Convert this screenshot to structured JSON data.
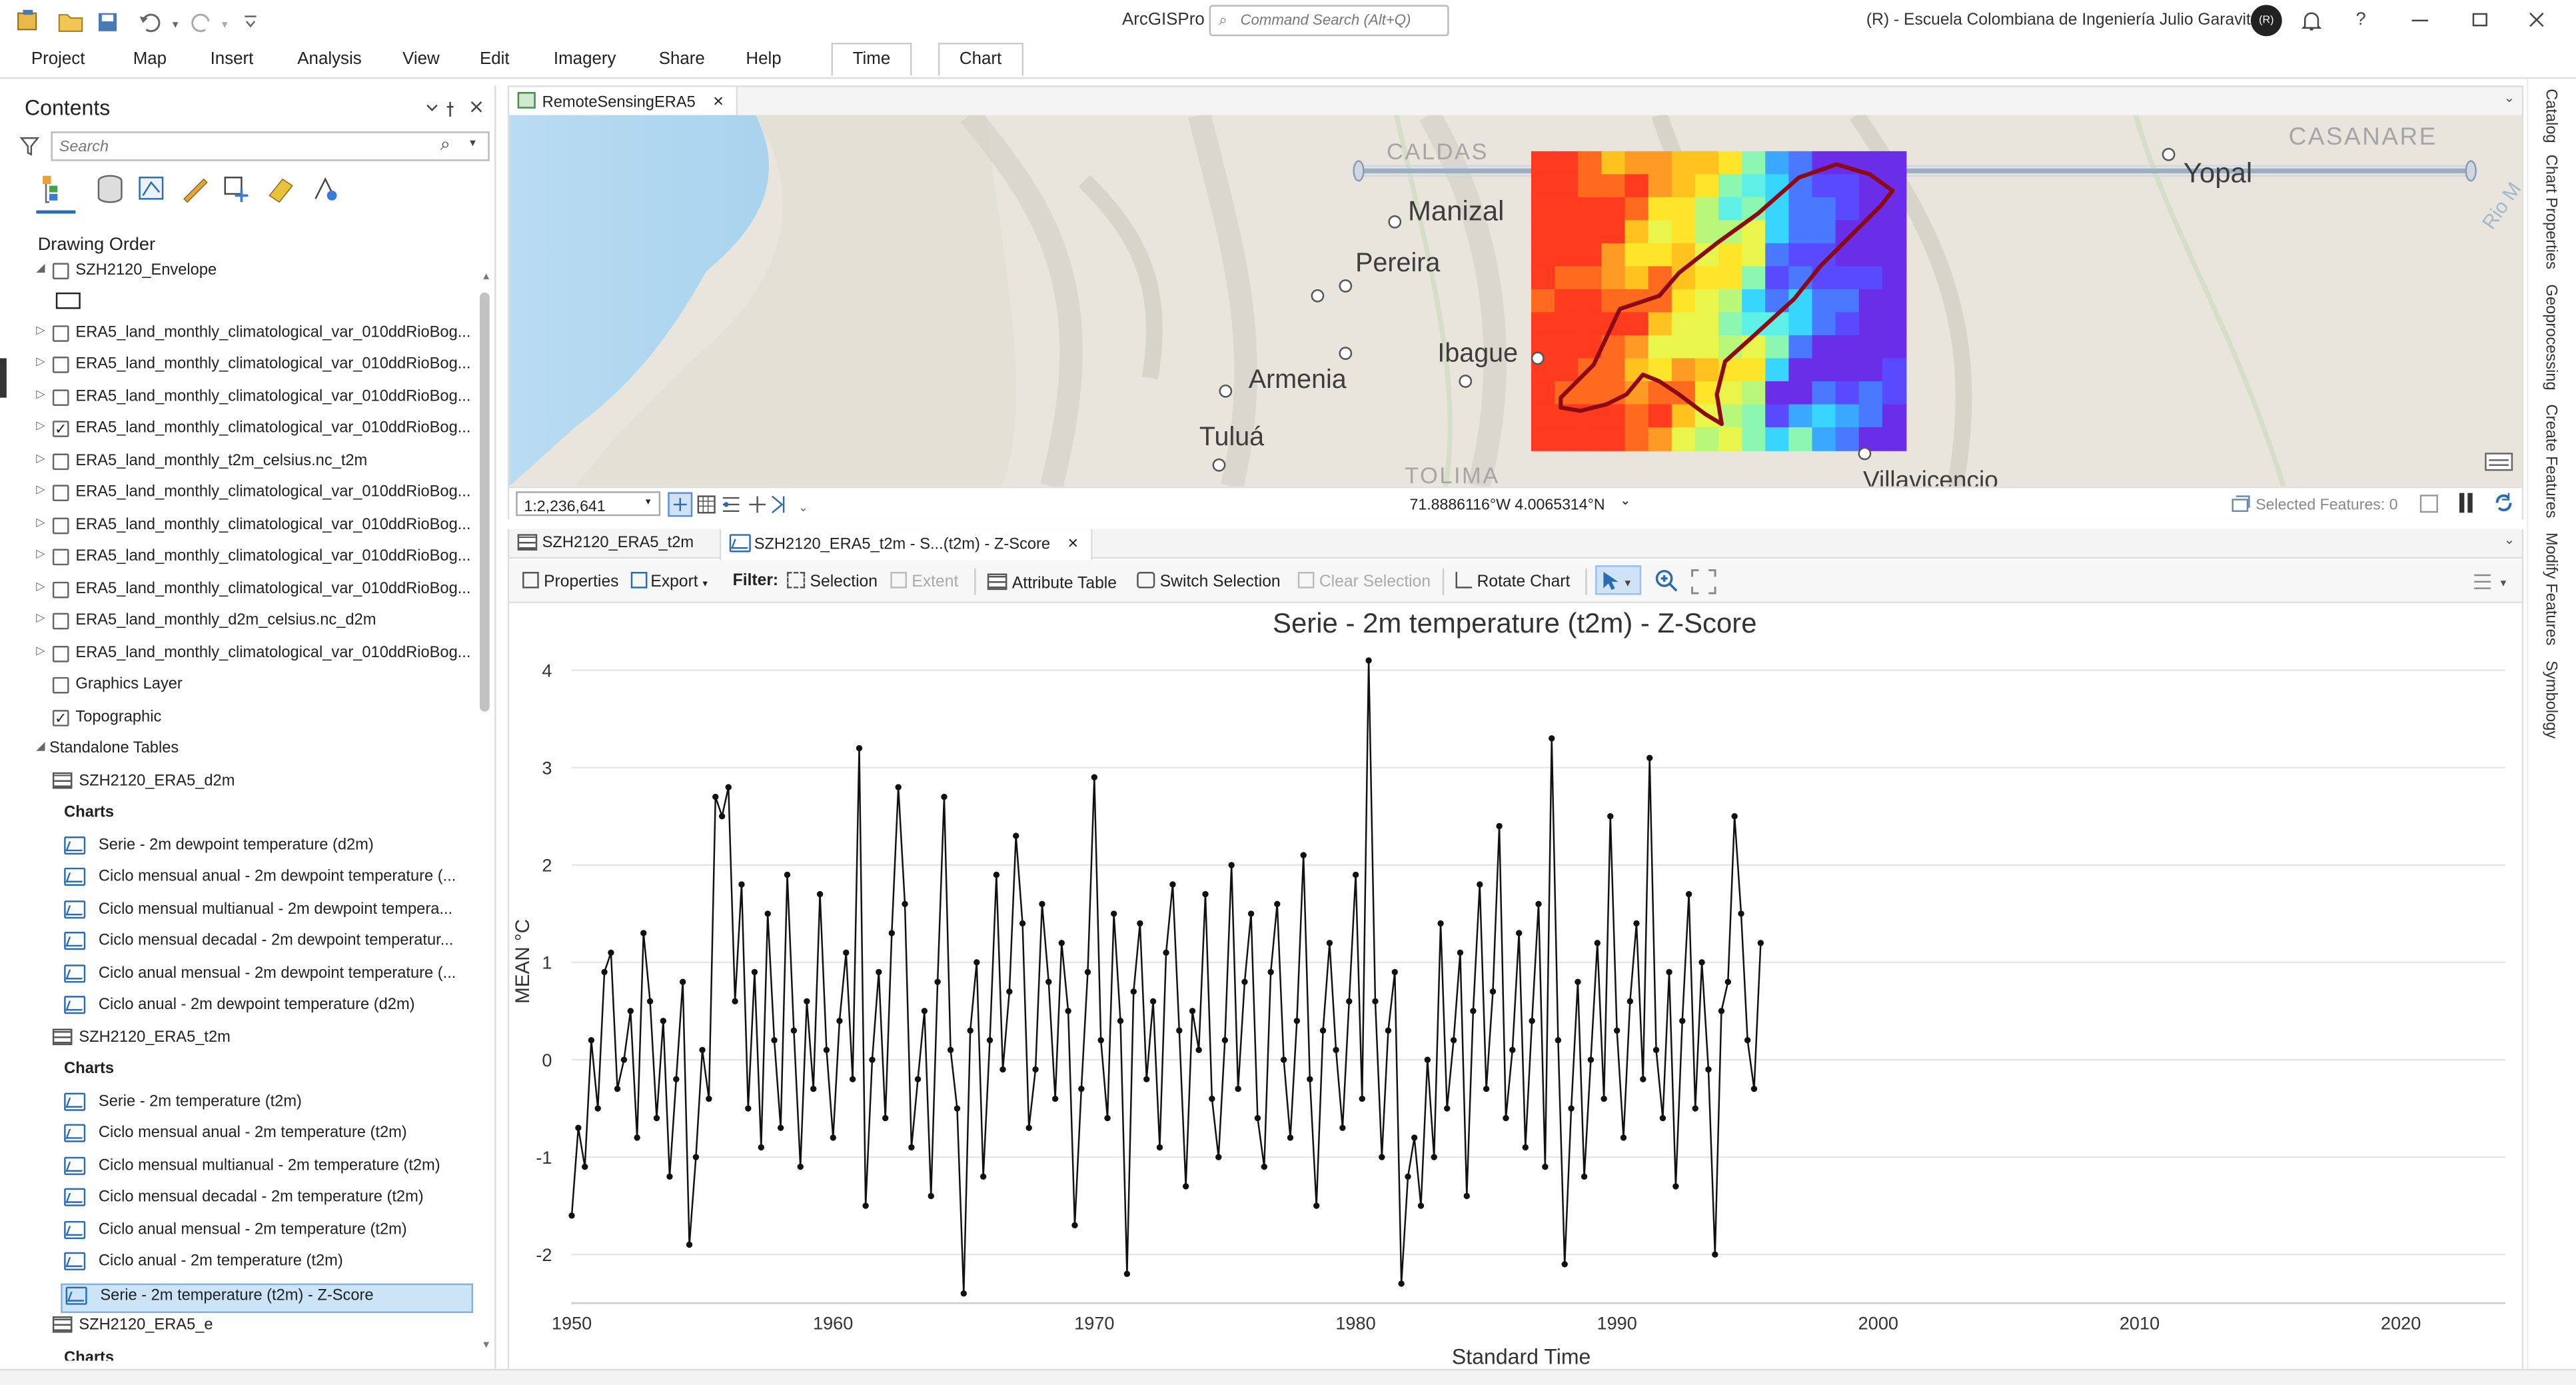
{
  "app": {
    "name": "ArcGISPro",
    "command_search_placeholder": "Command Search (Alt+Q)",
    "org": "(R) - Escuela Colombiana de Ingeniería Julio Garavito",
    "avatar_initials": "(R)",
    "help": "?"
  },
  "ribbon": {
    "tabs": [
      "Project",
      "Map",
      "Insert",
      "Analysis",
      "View",
      "Edit",
      "Imagery",
      "Share",
      "Help"
    ],
    "context_tabs": [
      "Time",
      "Chart"
    ]
  },
  "contents": {
    "title": "Contents",
    "search_placeholder": "Search",
    "section": "Drawing Order",
    "layers": [
      {
        "label": "SZH2120_Envelope",
        "checked": false,
        "expanded": true
      },
      {
        "label": "ERA5_land_monthly_climatological_var_010ddRioBog...",
        "checked": false
      },
      {
        "label": "ERA5_land_monthly_climatological_var_010ddRioBog...",
        "checked": false
      },
      {
        "label": "ERA5_land_monthly_climatological_var_010ddRioBog...",
        "checked": false
      },
      {
        "label": "ERA5_land_monthly_climatological_var_010ddRioBog...",
        "checked": true
      },
      {
        "label": "ERA5_land_monthly_t2m_celsius.nc_t2m",
        "checked": false
      },
      {
        "label": "ERA5_land_monthly_climatological_var_010ddRioBog...",
        "checked": false
      },
      {
        "label": "ERA5_land_monthly_climatological_var_010ddRioBog...",
        "checked": false
      },
      {
        "label": "ERA5_land_monthly_climatological_var_010ddRioBog...",
        "checked": false
      },
      {
        "label": "ERA5_land_monthly_climatological_var_010ddRioBog...",
        "checked": false
      },
      {
        "label": "ERA5_land_monthly_d2m_celsius.nc_d2m",
        "checked": false
      },
      {
        "label": "ERA5_land_monthly_climatological_var_010ddRioBog...",
        "checked": false
      },
      {
        "label": "Graphics Layer",
        "checked": false
      },
      {
        "label": "Topographic",
        "checked": true
      }
    ],
    "standalone_tables_label": "Standalone Tables",
    "tables": [
      {
        "name": "SZH2120_ERA5_d2m",
        "charts_label": "Charts",
        "charts": [
          "Serie - 2m dewpoint temperature (d2m)",
          "Ciclo mensual anual - 2m dewpoint temperature (...",
          "Ciclo mensual multianual - 2m dewpoint tempera...",
          "Ciclo mensual decadal - 2m dewpoint temperatur...",
          "Ciclo anual mensual - 2m dewpoint temperature (...",
          "Ciclo anual - 2m dewpoint temperature (d2m)"
        ]
      },
      {
        "name": "SZH2120_ERA5_t2m",
        "charts_label": "Charts",
        "charts": [
          "Serie - 2m temperature (t2m)",
          "Ciclo mensual anual - 2m temperature (t2m)",
          "Ciclo mensual multianual - 2m temperature (t2m)",
          "Ciclo mensual decadal - 2m temperature (t2m)",
          "Ciclo anual mensual - 2m temperature (t2m)",
          "Ciclo anual - 2m temperature (t2m)",
          "Serie - 2m temperature (t2m) - Z-Score"
        ]
      },
      {
        "name": "SZH2120_ERA5_e",
        "charts_label": "Charts",
        "charts": []
      }
    ]
  },
  "map": {
    "tab": "RemoteSensingERA5",
    "labels": [
      "CALDAS",
      "CASANARE",
      "Manizal",
      "Pereira",
      "Ibague",
      "Armenia",
      "Tuluá",
      "TOLIMA",
      "Villavicencio",
      "Yopal",
      "Rio M"
    ],
    "scale": "1:2,236,641",
    "coordinates": "71.8886116°W 4.0065314°N",
    "selected_features": "Selected Features: 0"
  },
  "chart_view": {
    "tabs": [
      "SZH2120_ERA5_t2m",
      "SZH2120_ERA5_t2m - S...(t2m) - Z-Score"
    ],
    "toolbar": {
      "properties": "Properties",
      "export": "Export",
      "filter": "Filter:",
      "selection": "Selection",
      "extent": "Extent",
      "attribute_table": "Attribute Table",
      "switch_selection": "Switch Selection",
      "clear_selection": "Clear Selection",
      "rotate_chart": "Rotate Chart"
    }
  },
  "right_panes": [
    "Catalog",
    "Chart Properties",
    "Geoprocessing",
    "Create Features",
    "Modify Features",
    "Symbology"
  ],
  "colors": {
    "accent": "#2b6cb0",
    "selected_row": "#cce4f7",
    "boundary": "#8b0a14"
  },
  "chart_data": {
    "type": "line",
    "title": "Serie - 2m temperature (t2m) - Z-Score",
    "xlabel": "Standard Time",
    "ylabel": "MEAN °C",
    "x_ticks": [
      1950,
      1960,
      1970,
      1980,
      1990,
      2000,
      2010,
      2020
    ],
    "y_ticks": [
      -2,
      -1,
      0,
      1,
      2,
      3,
      4
    ],
    "xlim": [
      1950,
      2024
    ],
    "ylim": [
      -2.5,
      4.2
    ],
    "markers": true,
    "grid": "horizontal",
    "series": [
      {
        "x_start": 1950,
        "step": 0.25,
        "values": [
          -1.6,
          -0.7,
          -1.1,
          0.2,
          -0.5,
          0.9,
          1.1,
          -0.3,
          0.0,
          0.5,
          -0.8,
          1.3,
          0.6,
          -0.6,
          0.4,
          -1.2,
          -0.2,
          0.8,
          -1.9,
          -1.0,
          0.1,
          -0.4,
          2.7,
          2.5,
          2.8,
          0.6,
          1.8,
          -0.5,
          0.9,
          -0.9,
          1.5,
          0.2,
          -0.7,
          1.9,
          0.3,
          -1.1,
          0.6,
          -0.3,
          1.7,
          0.1,
          -0.8,
          0.4,
          1.1,
          -0.2,
          3.2,
          -1.5,
          0.0,
          0.9,
          -0.6,
          1.3,
          2.8,
          1.6,
          -0.9,
          -0.2,
          0.5,
          -1.4,
          0.8,
          2.7,
          0.1,
          -0.5,
          -2.4,
          0.3,
          1.0,
          -1.2,
          0.2,
          1.9,
          -0.1,
          0.7,
          2.3,
          1.4,
          -0.7,
          -0.1,
          1.6,
          0.8,
          -0.4,
          1.2,
          0.5,
          -1.7,
          -0.3,
          0.9,
          2.9,
          0.2,
          -0.6,
          1.5,
          0.4,
          -2.2,
          0.7,
          1.4,
          -0.2,
          0.6,
          -0.9,
          1.1,
          1.8,
          0.3,
          -1.3,
          0.5,
          0.1,
          1.7,
          -0.4,
          -1.0,
          0.2,
          2.0,
          -0.3,
          0.8,
          1.5,
          -0.6,
          -1.1,
          0.9,
          1.6,
          0.0,
          -0.8,
          0.4,
          2.1,
          -0.2,
          -1.5,
          0.3,
          1.2,
          0.1,
          -0.7,
          0.6,
          1.9,
          -0.4,
          4.1,
          0.6,
          -1.0,
          0.3,
          0.9,
          -2.3,
          -1.2,
          -0.8,
          -1.5,
          0.0,
          -1.0,
          1.4,
          -0.5,
          0.2,
          1.1,
          -1.4,
          0.5,
          1.8,
          -0.3,
          0.7,
          2.4,
          -0.6,
          0.1,
          1.3,
          -0.9,
          0.4,
          1.6,
          -1.1,
          3.3,
          0.2,
          -2.1,
          -0.5,
          0.8,
          -1.2,
          0.0,
          1.2,
          -0.4,
          2.5,
          0.3,
          -0.8,
          0.6,
          1.4,
          -0.2,
          3.1,
          0.1,
          -0.6,
          0.9,
          -1.3,
          0.4,
          1.7,
          -0.5,
          1.0,
          -0.1,
          -2.0,
          0.5,
          0.8,
          2.5,
          1.5,
          0.2,
          -0.3,
          1.2
        ]
      }
    ]
  }
}
